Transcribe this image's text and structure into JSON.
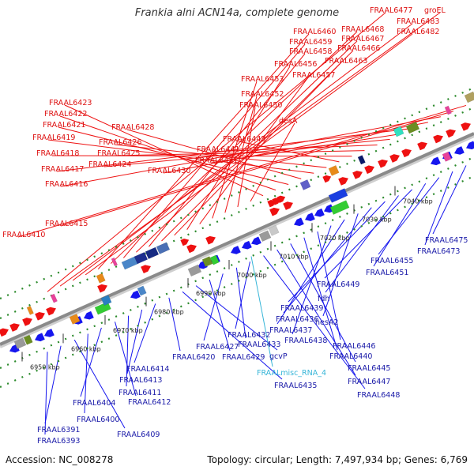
{
  "header": {
    "title": "Frankia alni ACN14a, complete genome"
  },
  "footer": {
    "accession": "Accession: NC_008278",
    "topology": "Topology: circular; Length: 7,497,934 bp; Genes: 6,769"
  },
  "colors": {
    "top_label": "#dd1111",
    "bottom_label": "#1a1aa8",
    "misc_label": "#38b6d8",
    "backbone": "#8a8a8a",
    "tick": "#2b8a2b"
  },
  "scale": {
    "ticks": [
      {
        "label": "6950 kbp"
      },
      {
        "label": "6960 kbp"
      },
      {
        "label": "6970 kbp"
      },
      {
        "label": "6980 kbp"
      },
      {
        "label": "6990 kbp"
      },
      {
        "label": "7000 kbp"
      },
      {
        "label": "7010 kbp"
      },
      {
        "label": "7020 kbp"
      },
      {
        "label": "7030 kbp"
      },
      {
        "label": "7040 kbp"
      }
    ]
  },
  "top_labels": [
    "FRAAL6477",
    "groEL",
    "FRAAL6483",
    "FRAAL6482",
    "FRAAL6460",
    "FRAAL6468",
    "FRAAL6459",
    "FRAAL6467",
    "FRAAL6458",
    "FRAAL6466",
    "FRAAL6463",
    "FRAAL6456",
    "FRAAL6457",
    "FRAAL6453",
    "FRAAL6452",
    "FRAAL6450",
    "desA",
    "FRAAL6423",
    "FRAAL6422",
    "FRAAL6421",
    "FRAAL6428",
    "FRAAL6419",
    "FRAAL6426",
    "FRAAL6443",
    "FRAAL6418",
    "FRAAL6425",
    "FRAAL6441",
    "FRAAL6424",
    "FRAAL6431",
    "FRAAL6417",
    "FRAAL6430",
    "FRAAL6416",
    "FRAAL6415",
    "FRAAL6410"
  ],
  "bottom_labels": [
    "FRAAL6475",
    "FRAAL6473",
    "FRAAL6455",
    "FRAAL6451",
    "FRAAL6449",
    "fdh",
    "FRAAL6439",
    "FRAAL6436",
    "hesA2",
    "FRAAL6437",
    "FRAAL6438",
    "FRAAL6446",
    "FRAAL6440",
    "FRAAL6445",
    "FRAAL6447",
    "FRAAL6448",
    "FRAAL6432",
    "FRAAL6433",
    "FRAAL6427",
    "FRAAL6429",
    "gcvP",
    "FRAAL6435",
    "FRAAL6420",
    "FRAAL6414",
    "FRAAL6413",
    "FRAAL6411",
    "FRAAL6412",
    "FRAAL6404",
    "FRAAL6400",
    "FRAAL6409",
    "FRAAL6391",
    "FRAAL6393"
  ],
  "misc_labels": [
    "FRAALmisc_RNA_4"
  ]
}
